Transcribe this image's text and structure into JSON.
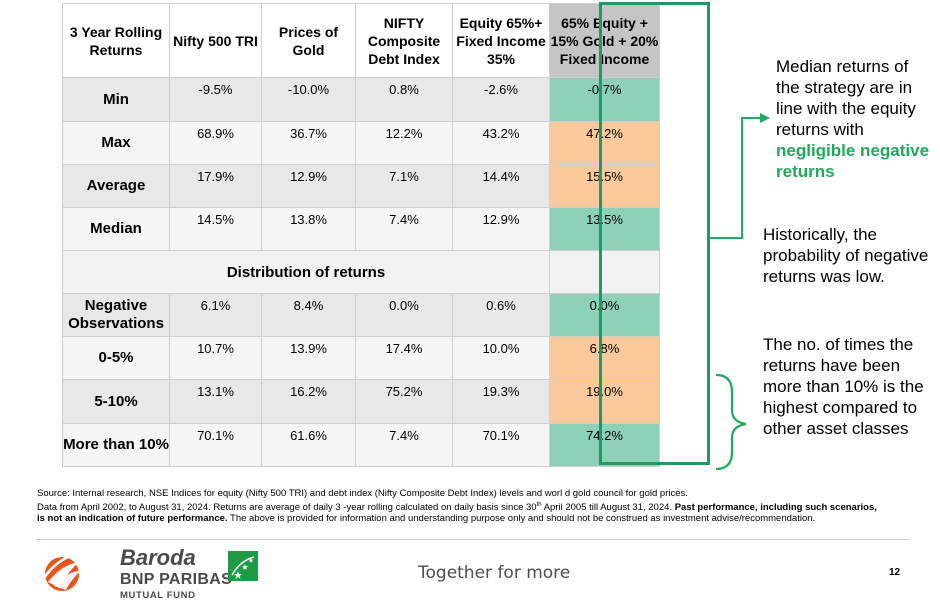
{
  "table": {
    "headers": [
      "3 Year Rolling Returns",
      "Nifty 500 TRI",
      "Prices of Gold",
      "NIFTY Composite Debt Index",
      "Equity 65%+ Fixed Income 35%",
      "65% Equity + 15% Gold + 20% Fixed Income"
    ],
    "rows": [
      {
        "label": "Min",
        "values": [
          "-9.5%",
          "-10.0%",
          "0.8%",
          "-2.6%",
          "-0.7%"
        ]
      },
      {
        "label": "Max",
        "values": [
          "68.9%",
          "36.7%",
          "12.2%",
          "43.2%",
          "47.2%"
        ]
      },
      {
        "label": "Average",
        "values": [
          "17.9%",
          "12.9%",
          "7.1%",
          "14.4%",
          "15.5%"
        ]
      },
      {
        "label": "Median",
        "values": [
          "14.5%",
          "13.8%",
          "7.4%",
          "12.9%",
          "13.5%"
        ]
      }
    ],
    "distribution_title": "Distribution of returns",
    "dist_rows": [
      {
        "label": "Negative Observations",
        "values": [
          "6.1%",
          "8.4%",
          "0.0%",
          "0.6%",
          "0.0%"
        ]
      },
      {
        "label": "0-5%",
        "values": [
          "10.7%",
          "13.9%",
          "17.4%",
          "10.0%",
          "6.8%"
        ]
      },
      {
        "label": "5-10%",
        "values": [
          "13.1%",
          "16.2%",
          "75.2%",
          "19.3%",
          "19.0%"
        ]
      },
      {
        "label": "More than 10%",
        "values": [
          "70.1%",
          "61.6%",
          "7.4%",
          "70.1%",
          "74.2%"
        ]
      }
    ]
  },
  "annotations": {
    "median_note": "Median returns of the strategy are in line with the equity returns with",
    "median_note_highlight": "negligible negative returns",
    "negative_note": "Historically, the probability of negative returns was low.",
    "greater10_note": "The no. of times the returns have been more than 10% is the highest compared to other asset classes"
  },
  "footer": {
    "source_line1": "Source: Internal research, NSE Indices for equity (Nifty 500 TRI) and debt index (Nifty Composite Debt Index) levels and worl      d gold council for gold prices.",
    "source_line2_pre": "Data from April 2002, to  August 31, 2024. Returns are average of daily 3   -year rolling calculated on daily basis since 30",
    "source_sup": "th",
    "source_line2_post": " April 2005 till August 31, 2024.",
    "source_bold": "Past performance, including such scenarios, is not an indication of future performance.",
    "source_tail": " The above is provided for information and understanding purpose only and should not be construed as investment advise/recommendation.",
    "brand_line1": "Baroda",
    "brand_line2": "BNP PARIBAS",
    "brand_line3": "MUTUAL FUND",
    "tagline": "Together for more",
    "page_number": "12"
  },
  "colors": {
    "highlight_green": "#8fd0b8",
    "highlight_orange": "#f9c99b",
    "box_border": "#1f9a62",
    "accent_text": "#1faa5d",
    "logo_orange": "#e8541d",
    "bnp_green": "#1e9b45"
  }
}
